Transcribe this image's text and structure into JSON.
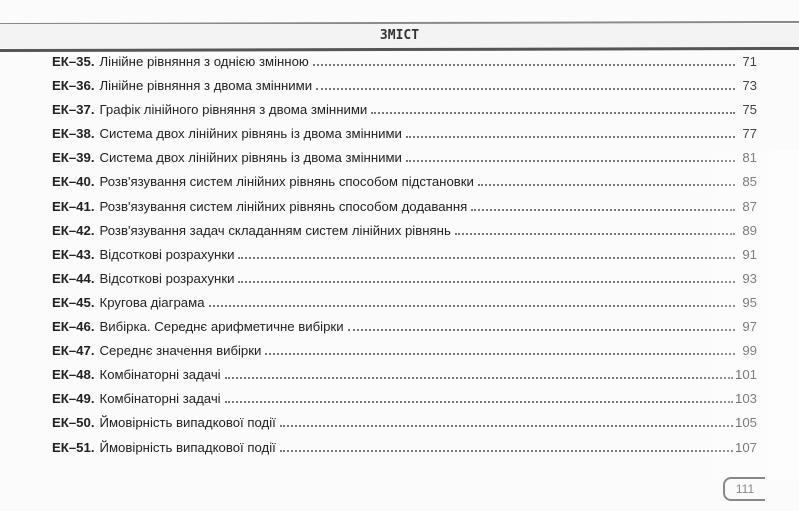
{
  "header": {
    "title": "ЗМІСТ"
  },
  "entries": [
    {
      "code": "ЕК–35.",
      "title": "Лінійне рівняння з однією змінною",
      "page": "71"
    },
    {
      "code": "ЕК–36.",
      "title": "Лінійне рівняння з двома змінними",
      "page": "73"
    },
    {
      "code": "ЕК–37.",
      "title": "Графік лінійного рівняння з двома змінними",
      "page": "75"
    },
    {
      "code": "ЕК–38.",
      "title": "Система двох лінійних рівнянь із двома змінними",
      "page": "77"
    },
    {
      "code": "ЕК–39.",
      "title": "Система двох лінійних рівнянь із двома змінними",
      "page": "81"
    },
    {
      "code": "ЕК–40.",
      "title": "Розв'язування систем лінійних рівнянь способом підстановки",
      "page": "85"
    },
    {
      "code": "ЕК–41.",
      "title": "Розв'язування систем лінійних рівнянь способом додавання",
      "page": "87"
    },
    {
      "code": "ЕК–42.",
      "title": "Розв'язування задач складанням систем лінійних рівнянь",
      "page": "89"
    },
    {
      "code": "ЕК–43.",
      "title": "Відсоткові розрахунки",
      "page": "91"
    },
    {
      "code": "ЕК–44.",
      "title": "Відсоткові розрахунки",
      "page": "93"
    },
    {
      "code": "ЕК–45.",
      "title": "Кругова діаграма",
      "page": "95"
    },
    {
      "code": "ЕК–46.",
      "title": "Вибірка. Середнє арифметичне вибірки",
      "page": "97"
    },
    {
      "code": "ЕК–47.",
      "title": "Середнє значення вибірки",
      "page": "99"
    },
    {
      "code": "ЕК–48.",
      "title": "Комбінаторні задачі",
      "page": "101"
    },
    {
      "code": "ЕК–49.",
      "title": "Комбінаторні задачі",
      "page": "103"
    },
    {
      "code": "ЕК–50.",
      "title": "Ймовірність випадкової події",
      "page": "105"
    },
    {
      "code": "ЕК–51.",
      "title": "Ймовірність випадкової події",
      "page": "107"
    }
  ],
  "footer": {
    "page_number": "111"
  }
}
